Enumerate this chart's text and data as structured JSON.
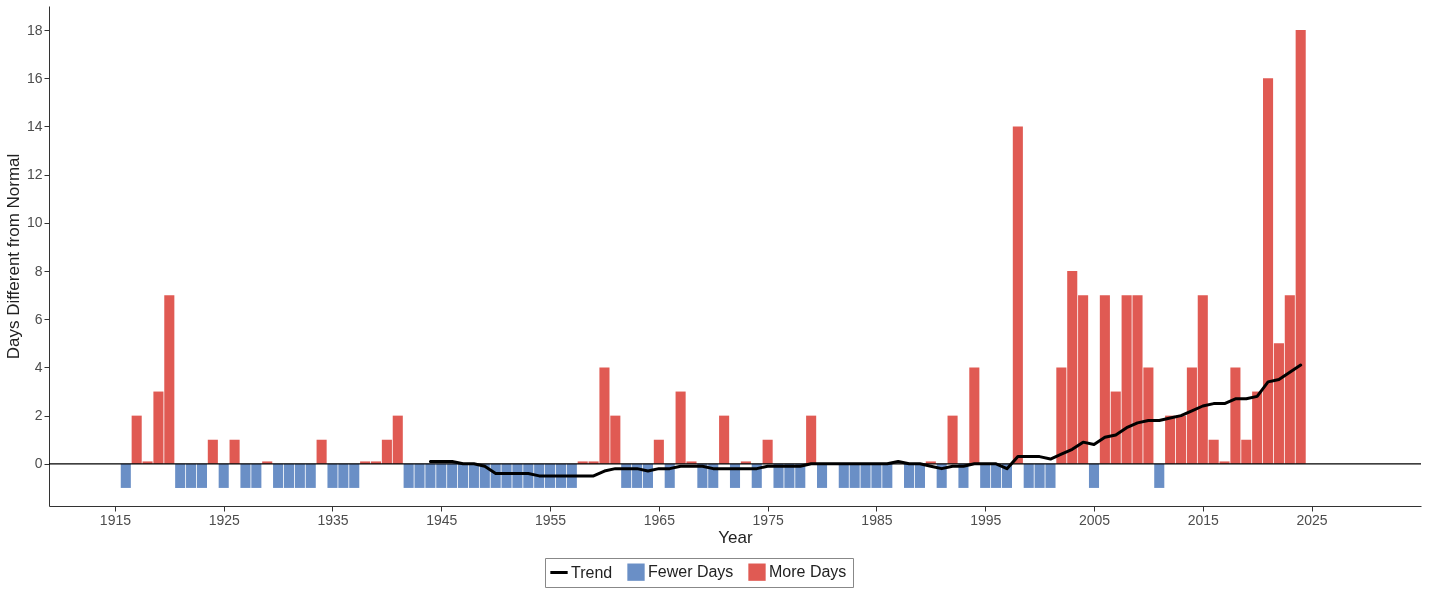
{
  "chart_data": {
    "type": "bar",
    "xlabel": "Year",
    "ylabel": "Days Different from Normal",
    "x": [
      1916,
      1917,
      1918,
      1919,
      1920,
      1921,
      1922,
      1923,
      1924,
      1925,
      1926,
      1927,
      1928,
      1929,
      1930,
      1931,
      1932,
      1933,
      1934,
      1935,
      1936,
      1937,
      1938,
      1939,
      1940,
      1941,
      1942,
      1943,
      1944,
      1945,
      1946,
      1947,
      1948,
      1949,
      1950,
      1951,
      1952,
      1953,
      1954,
      1955,
      1956,
      1957,
      1958,
      1959,
      1960,
      1961,
      1962,
      1963,
      1964,
      1965,
      1966,
      1967,
      1968,
      1969,
      1970,
      1971,
      1972,
      1973,
      1974,
      1975,
      1976,
      1977,
      1978,
      1979,
      1980,
      1981,
      1982,
      1983,
      1984,
      1985,
      1986,
      1987,
      1988,
      1989,
      1990,
      1991,
      1992,
      1993,
      1994,
      1995,
      1996,
      1997,
      1998,
      1999,
      2000,
      2001,
      2002,
      2003,
      2004,
      2005,
      2006,
      2007,
      2008,
      2009,
      2010,
      2011,
      2012,
      2013,
      2014,
      2015,
      2016,
      2017,
      2018,
      2019,
      2020,
      2021,
      2022,
      2023,
      2024
    ],
    "series": [
      {
        "name": "Trend",
        "type": "line",
        "color": "#000000",
        "x": [
          1944,
          1945,
          1946,
          1947,
          1948,
          1949,
          1950,
          1951,
          1952,
          1953,
          1954,
          1955,
          1956,
          1957,
          1958,
          1959,
          1960,
          1961,
          1962,
          1963,
          1964,
          1965,
          1966,
          1967,
          1968,
          1969,
          1970,
          1971,
          1972,
          1973,
          1974,
          1975,
          1976,
          1977,
          1978,
          1979,
          1980,
          1981,
          1982,
          1983,
          1984,
          1985,
          1986,
          1987,
          1988,
          1989,
          1990,
          1991,
          1992,
          1993,
          1994,
          1995,
          1996,
          1997,
          1998,
          1999,
          2000,
          2001,
          2002,
          2003,
          2004,
          2005,
          2006,
          2007,
          2008,
          2009,
          2010,
          2011,
          2012,
          2013,
          2014,
          2015,
          2016,
          2017,
          2018,
          2019,
          2020,
          2021,
          2022,
          2023,
          2024
        ],
        "values": [
          0.1,
          0.1,
          0.1,
          0,
          0,
          -0.1,
          -0.4,
          -0.4,
          -0.4,
          -0.4,
          -0.5,
          -0.5,
          -0.5,
          -0.5,
          -0.5,
          -0.5,
          -0.3,
          -0.2,
          -0.2,
          -0.2,
          -0.3,
          -0.2,
          -0.2,
          -0.1,
          -0.1,
          -0.1,
          -0.2,
          -0.2,
          -0.2,
          -0.2,
          -0.2,
          -0.1,
          -0.1,
          -0.1,
          -0.1,
          0,
          0,
          0,
          0,
          0,
          0,
          0,
          0,
          0.1,
          0,
          0,
          -0.1,
          -0.2,
          -0.1,
          -0.1,
          0,
          0,
          0,
          -0.2,
          0.3,
          0.3,
          0.3,
          0.2,
          0.4,
          0.6,
          0.9,
          0.8,
          1.1,
          1.2,
          1.5,
          1.7,
          1.8,
          1.8,
          1.9,
          2.0,
          2.2,
          2.4,
          2.5,
          2.5,
          2.7,
          2.7,
          2.8,
          3.4,
          3.5,
          3.8,
          4.1
        ]
      },
      {
        "name": "Fewer Days",
        "color": "#6a8fc6",
        "values": [
          -1,
          null,
          null,
          null,
          null,
          -1,
          -1,
          -1,
          null,
          -1,
          null,
          -1,
          -1,
          null,
          -1,
          -1,
          -1,
          -1,
          null,
          -1,
          -1,
          -1,
          null,
          null,
          null,
          null,
          -1,
          -1,
          -1,
          -1,
          -1,
          -1,
          -1,
          -1,
          -1,
          -1,
          -1,
          -1,
          -1,
          -1,
          -1,
          -1,
          null,
          null,
          null,
          null,
          -1,
          -1,
          -1,
          null,
          -1,
          null,
          null,
          -1,
          -1,
          null,
          -1,
          null,
          -1,
          null,
          -1,
          -1,
          -1,
          null,
          -1,
          null,
          -1,
          -1,
          -1,
          -1,
          -1,
          null,
          -1,
          -1,
          null,
          -1,
          null,
          -1,
          null,
          -1,
          -1,
          -1,
          null,
          -1,
          -1,
          -1,
          null,
          null,
          null,
          -1,
          null,
          null,
          null,
          null,
          null,
          -1,
          null,
          null,
          null,
          null,
          null,
          null,
          null,
          null,
          null,
          null,
          null,
          null,
          null
        ]
      },
      {
        "name": "More Days",
        "color": "#e05a53",
        "values": [
          null,
          2,
          0.1,
          3,
          7,
          null,
          null,
          null,
          1,
          null,
          1,
          null,
          null,
          0.1,
          null,
          null,
          null,
          null,
          1,
          null,
          null,
          null,
          0.1,
          0.1,
          1,
          2,
          null,
          null,
          null,
          null,
          null,
          null,
          null,
          null,
          null,
          null,
          null,
          null,
          null,
          null,
          null,
          null,
          0.1,
          0.1,
          4,
          2,
          null,
          null,
          null,
          1,
          null,
          3,
          0.1,
          null,
          null,
          2,
          null,
          0.1,
          null,
          1,
          null,
          null,
          null,
          2,
          null,
          0,
          null,
          null,
          null,
          null,
          null,
          0,
          null,
          null,
          0.1,
          null,
          2,
          null,
          4,
          null,
          null,
          null,
          14,
          null,
          null,
          null,
          4,
          8,
          7,
          null,
          7,
          3,
          7,
          7,
          4,
          null,
          2,
          2,
          4,
          7,
          1,
          0.1,
          4,
          1,
          3,
          16,
          5,
          7,
          18
        ]
      }
    ],
    "xlim": [
      1909.4,
      2034.6
    ],
    "xticks": [
      1915,
      1925,
      1935,
      1945,
      1955,
      1965,
      1975,
      1985,
      1995,
      2005,
      2015,
      2025
    ],
    "ylim": [
      -1.75,
      19
    ],
    "yticks": [
      0,
      2,
      4,
      6,
      8,
      10,
      12,
      14,
      16,
      18
    ],
    "ref_lines": [
      {
        "axis": "y",
        "value": 0,
        "color": "#000000"
      }
    ],
    "grid": false,
    "legend": "bottom"
  }
}
